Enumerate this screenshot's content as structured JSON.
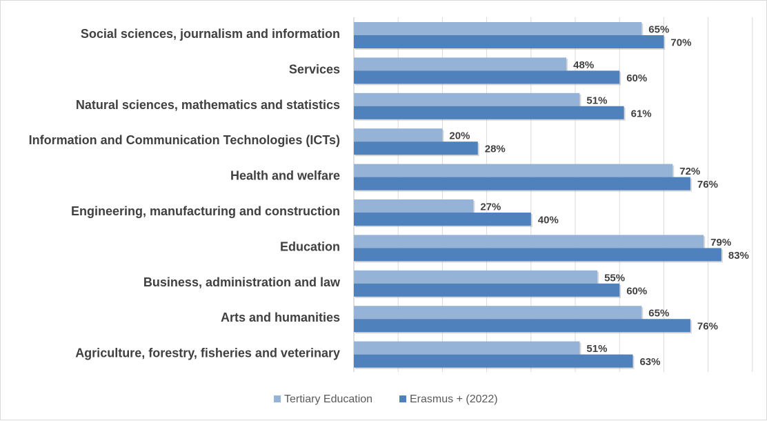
{
  "chart_data": {
    "type": "bar",
    "orientation": "horizontal",
    "title": "",
    "xlabel": "",
    "ylabel": "",
    "xlim": [
      0,
      90
    ],
    "grid": true,
    "legend_position": "bottom",
    "categories": [
      "Social sciences, journalism and information",
      "Services",
      "Natural sciences, mathematics and statistics",
      "Information and Communication Technologies (ICTs)",
      "Health and welfare",
      "Engineering, manufacturing and construction",
      "Education",
      "Business, administration and law",
      "Arts and humanities",
      "Agriculture, forestry, fisheries and veterinary"
    ],
    "series": [
      {
        "name": "Tertiary Education",
        "color": "#95b3d7",
        "values": [
          65,
          48,
          51,
          20,
          72,
          27,
          79,
          55,
          65,
          51
        ],
        "labels": [
          "65%",
          "48%",
          "51%",
          "20%",
          "72%",
          "27%",
          "79%",
          "55%",
          "65%",
          "51%"
        ]
      },
      {
        "name": "Erasmus + (2022)",
        "color": "#4f81bd",
        "values": [
          70,
          60,
          61,
          28,
          76,
          40,
          83,
          60,
          76,
          63
        ],
        "labels": [
          "70%",
          "60%",
          "61%",
          "28%",
          "76%",
          "40%",
          "83%",
          "60%",
          "76%",
          "63%"
        ]
      }
    ]
  }
}
